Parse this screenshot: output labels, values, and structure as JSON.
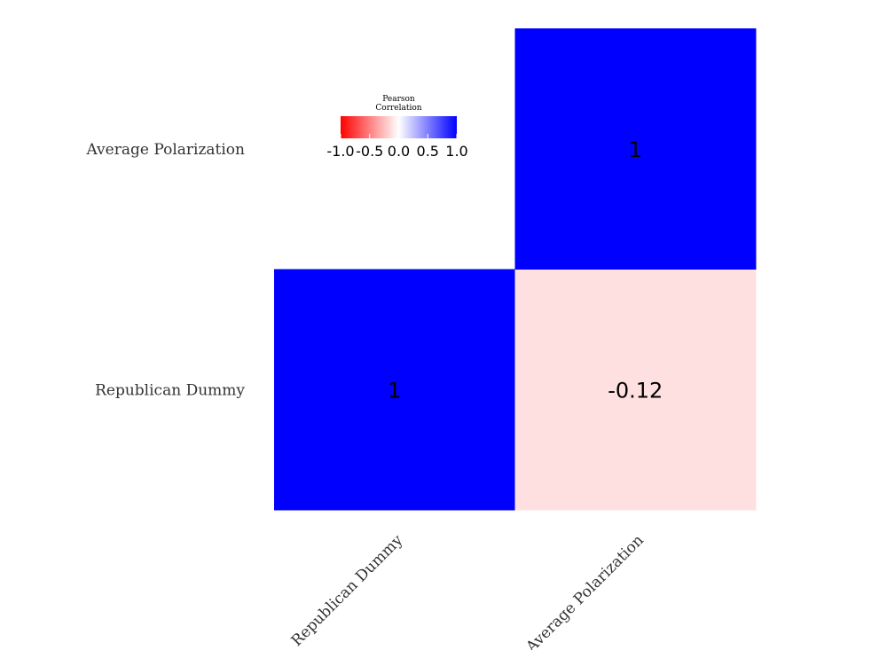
{
  "chart_data": {
    "type": "heatmap",
    "variables": [
      "Republican Dummy",
      "Average Polarization"
    ],
    "cells": [
      {
        "row": "Republican Dummy",
        "col": "Republican Dummy",
        "value": 1,
        "label": "1"
      },
      {
        "row": "Republican Dummy",
        "col": "Average Polarization",
        "value": -0.12,
        "label": "-0.12"
      },
      {
        "row": "Average Polarization",
        "col": "Average Polarization",
        "value": 1,
        "label": "1"
      }
    ],
    "legend": {
      "title_lines": [
        "Pearson",
        "Correlation"
      ],
      "range": [
        -1,
        1
      ],
      "ticks": [
        "-1.0",
        "-0.5",
        "0.0",
        "0.5",
        "1.0"
      ],
      "tick_values": [
        -1,
        -0.5,
        0,
        0.5,
        1
      ],
      "colors": {
        "low": "#FF0000",
        "mid": "#FFFFFF",
        "high": "#0000FF"
      }
    },
    "grid": false,
    "triangle": "upper"
  }
}
